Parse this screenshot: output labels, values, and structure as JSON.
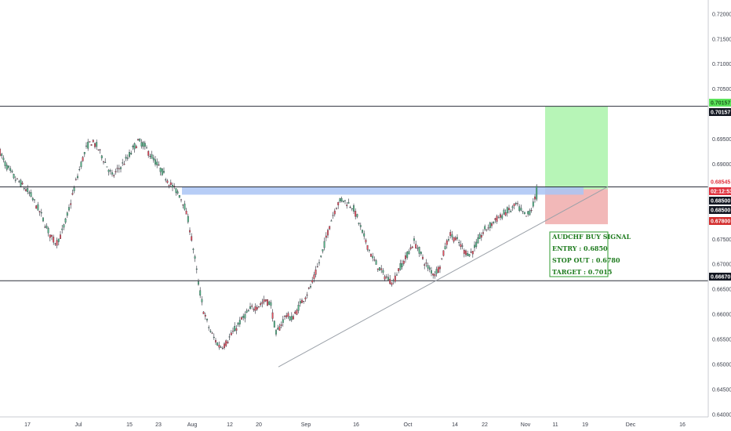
{
  "chart_data": {
    "type": "candlestick",
    "symbol": "AUDCHF",
    "y_ticks": [
      "0.72000",
      "0.71500",
      "0.71000",
      "0.70500",
      "0.69500",
      "0.69000",
      "0.67500",
      "0.67000",
      "0.66500",
      "0.66000",
      "0.65500",
      "0.65000",
      "0.64500",
      "0.64000"
    ],
    "x_ticks": [
      "17",
      "Jul",
      "15",
      "23",
      "Aug",
      "12",
      "20",
      "Sep",
      "16",
      "Oct",
      "14",
      "22",
      "Nov",
      "11",
      "19",
      "Dec",
      "16"
    ],
    "ylim": [
      0.6395,
      0.7228
    ],
    "horizontal_lines": [
      0.70157,
      0.68545,
      0.6667
    ],
    "support_trendline": [
      [
        0,
        0.6495
      ],
      [
        1,
        0.6855
      ]
    ],
    "supply_zone": {
      "top": 0.6854,
      "bottom": 0.6839
    },
    "long_position": {
      "entry": 0.685,
      "stop": 0.678,
      "target": 0.7015
    },
    "price_path": [
      0.6925,
      0.69,
      0.6885,
      0.687,
      0.6862,
      0.685,
      0.6838,
      0.682,
      0.68,
      0.6775,
      0.6755,
      0.6742,
      0.676,
      0.679,
      0.683,
      0.687,
      0.6905,
      0.6935,
      0.6945,
      0.6935,
      0.6915,
      0.6895,
      0.6875,
      0.6888,
      0.69,
      0.6912,
      0.693,
      0.6945,
      0.694,
      0.6925,
      0.691,
      0.6895,
      0.688,
      0.6865,
      0.6852,
      0.684,
      0.682,
      0.678,
      0.672,
      0.665,
      0.66,
      0.657,
      0.655,
      0.6535,
      0.654,
      0.6555,
      0.657,
      0.6585,
      0.6598,
      0.661,
      0.6615,
      0.662,
      0.6628,
      0.662,
      0.656,
      0.658,
      0.66,
      0.659,
      0.6605,
      0.6625,
      0.664,
      0.666,
      0.669,
      0.672,
      0.676,
      0.6795,
      0.682,
      0.683,
      0.6822,
      0.6815,
      0.679,
      0.676,
      0.6735,
      0.671,
      0.6695,
      0.668,
      0.667,
      0.6665,
      0.669,
      0.6705,
      0.6725,
      0.6745,
      0.6728,
      0.6705,
      0.669,
      0.668,
      0.6695,
      0.673,
      0.676,
      0.6752,
      0.674,
      0.6725,
      0.672,
      0.6735,
      0.6755,
      0.677,
      0.6778,
      0.679,
      0.6795,
      0.6805,
      0.6808,
      0.682,
      0.6805,
      0.6795,
      0.681,
      0.684
    ],
    "highlighted_level": "0.68545",
    "countdown": "02:12:53",
    "level_labels": {
      "target": "0.70157",
      "target_line": "0.70157",
      "entry_a": "0.68500",
      "entry_b": "0.68500",
      "stop": "0.67800",
      "support": "0.66670"
    }
  },
  "signal_box": {
    "title": "AUDCHF BUY SIGNAL",
    "entry": "ENTRY : 0.6850",
    "stop": "STOP OUT : 0.6780",
    "target": "TARGET : 0.7015"
  },
  "colors": {
    "bull": "#53b987",
    "bear": "#eb4d5c",
    "profit_zone": "#b7f5b7",
    "loss_zone": "#f2b8b8",
    "supply_zone": "#aac4f5",
    "signal_text": "#1e7b1e"
  }
}
